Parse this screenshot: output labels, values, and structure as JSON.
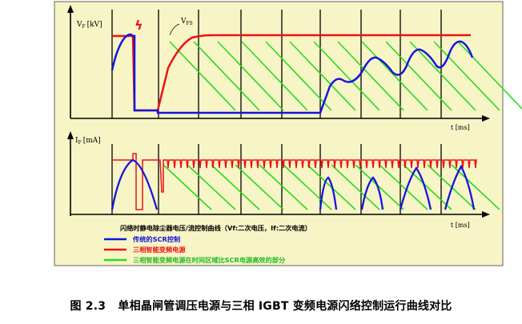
{
  "figure": {
    "panel_bg": "#f7f4c6",
    "colors": {
      "scr": "#1515dd",
      "igbt": "#ee1111",
      "advantage": "#22dd22",
      "axis": "#000000",
      "grid": "#000000"
    },
    "top_axis": {
      "y_label_main": "V",
      "y_label_sub": "F",
      "y_label_unit": "[kV]",
      "x_label": "t [ms]",
      "annotation": "V",
      "annotation_sub": "FS",
      "flash_symbol": "ϟ"
    },
    "bottom_axis": {
      "y_label_main": "I",
      "y_label_sub": "F",
      "y_label_unit": "[mA]",
      "x_label": "t [ms]"
    },
    "legend": {
      "title": "闪络时静电除尘器电压/流控制曲线（Vf:二次电压，If:二次电流）",
      "items": [
        {
          "label": "传统的SCR控制",
          "color": "#1515dd"
        },
        {
          "label": "三相智能变频电源",
          "color": "#ee1111"
        },
        {
          "label": "三相智能变频电源在时间区域比SCR电源高效的部分",
          "color": "#22dd22"
        }
      ]
    }
  },
  "caption": {
    "number": "图 2.3",
    "text": "单相晶闸管调压电源与三相 IGBT 变频电源闪络控制运行曲线对比"
  }
}
